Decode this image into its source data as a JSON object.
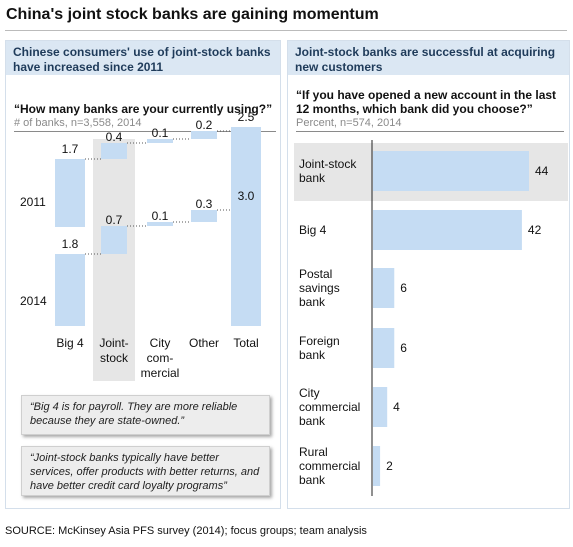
{
  "title": "China's joint stock banks are gaining momentum",
  "left_panel": {
    "header": "Chinese consumers' use of  joint-stock banks have increased since 2011",
    "question": "“How many banks are your currently using?”",
    "subtitle": "# of banks, n=3,558,  2014"
  },
  "right_panel": {
    "header": "Joint-stock banks are successful at acquiring new customers",
    "question": "“If you have opened a new account in the last 12 months, which bank did you choose?”",
    "subtitle": "Percent, n=574, 2014"
  },
  "quotes": [
    "“Big 4 is for payroll. They are more reliable because they are state-owned.”",
    "“Joint-stock banks typically have better services, offer products with better returns, and have better credit card loyalty programs”"
  ],
  "source": "SOURCE: McKinsey Asia PFS survey (2014); focus groups; team analysis",
  "colors": {
    "bar": "#c5dcf3",
    "highlight": "#e6e6e6",
    "header_bg": "#dbe7f3",
    "header_text": "#1f3b5a"
  },
  "chart_data": [
    {
      "type": "bar",
      "subtype": "waterfall",
      "categories": [
        "Big 4",
        "Joint-stock",
        "City commercial",
        "Other",
        "Total"
      ],
      "category_labels": [
        [
          "Big 4"
        ],
        [
          "Joint-",
          "stock"
        ],
        [
          "City",
          "com-",
          "mercial"
        ],
        [
          "Other"
        ],
        [
          "Total"
        ]
      ],
      "series": [
        {
          "name": "2011",
          "values": [
            1.7,
            0.4,
            0.1,
            0.2,
            2.5
          ]
        },
        {
          "name": "2014",
          "values": [
            1.8,
            0.7,
            0.1,
            0.3,
            3.0
          ]
        }
      ],
      "highlight_category": "Joint-stock"
    },
    {
      "type": "bar",
      "orientation": "horizontal",
      "categories": [
        "Joint-stock bank",
        "Big 4",
        "Postal savings bank",
        "Foreign bank",
        "City commercial bank",
        "Rural commercial bank"
      ],
      "category_labels": [
        [
          "Joint-stock",
          "bank"
        ],
        [
          "Big 4"
        ],
        [
          "Postal",
          "savings",
          "bank"
        ],
        [
          "Foreign",
          "bank"
        ],
        [
          "City",
          "commercial",
          "bank"
        ],
        [
          "Rural",
          "commercial",
          "bank"
        ]
      ],
      "values": [
        44,
        42,
        6,
        6,
        4,
        2
      ],
      "highlight_category": "Joint-stock bank"
    }
  ]
}
